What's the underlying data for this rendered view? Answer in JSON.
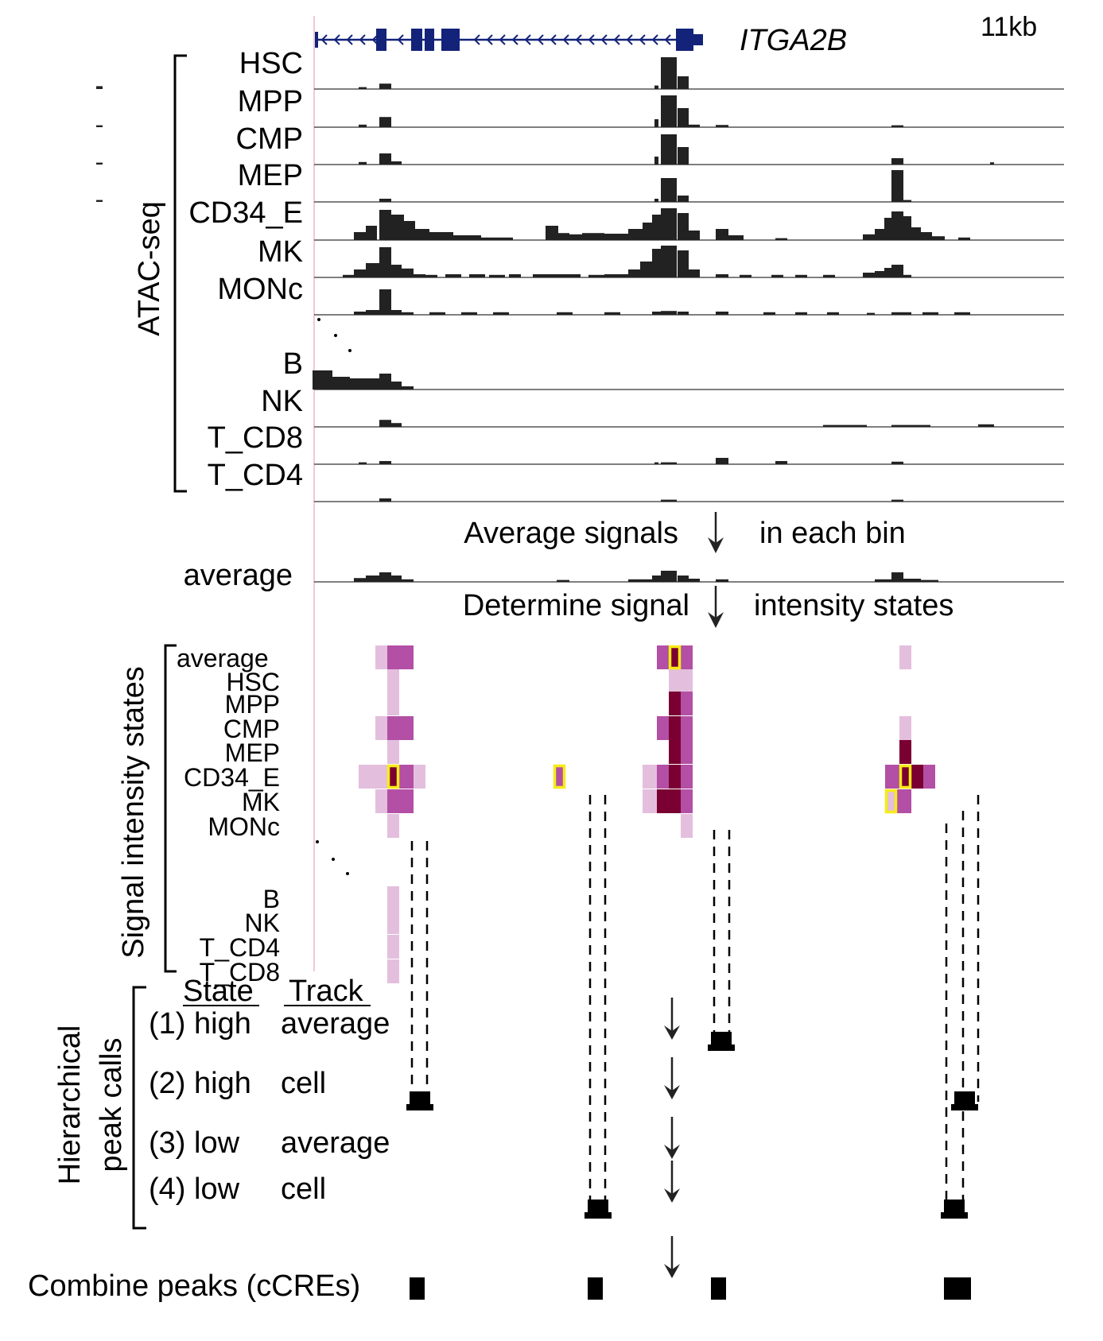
{
  "gene": {
    "name": "ITGA2B",
    "scale": "11kb"
  },
  "atac": {
    "title": "ATAC-seq",
    "tracks": [
      {
        "label": "HSC",
        "bars": [
          [
            121,
            129,
            0.09
          ],
          [
            451,
            461,
            0.06
          ],
          [
            477,
            492,
            0.17
          ],
          [
            823,
            828,
            0.11
          ],
          [
            831,
            851,
            1.0
          ],
          [
            852,
            866,
            0.4
          ]
        ]
      },
      {
        "label": "MPP",
        "bars": [
          [
            121,
            129,
            0.06
          ],
          [
            451,
            461,
            0.08
          ],
          [
            477,
            492,
            0.32
          ],
          [
            823,
            828,
            0.25
          ],
          [
            831,
            851,
            1.0
          ],
          [
            852,
            866,
            0.6
          ],
          [
            866,
            880,
            0.08
          ],
          [
            900,
            916,
            0.07
          ],
          [
            1121,
            1136,
            0.06
          ]
        ]
      },
      {
        "label": "CMP",
        "bars": [
          [
            121,
            129,
            0.06
          ],
          [
            451,
            461,
            0.08
          ],
          [
            477,
            492,
            0.35
          ],
          [
            492,
            505,
            0.1
          ],
          [
            823,
            828,
            0.25
          ],
          [
            831,
            851,
            0.95
          ],
          [
            852,
            866,
            0.55
          ],
          [
            1121,
            1136,
            0.2
          ],
          [
            1245,
            1250,
            0.07
          ]
        ]
      },
      {
        "label": "MEP",
        "bars": [
          [
            121,
            129,
            0.06
          ],
          [
            477,
            492,
            0.1
          ],
          [
            823,
            828,
            0.1
          ],
          [
            831,
            851,
            0.75
          ],
          [
            852,
            866,
            0.2
          ],
          [
            1121,
            1136,
            1.0
          ],
          [
            1136,
            1146,
            0.06
          ]
        ]
      },
      {
        "label": "CD34_E",
        "bars": [
          [
            445,
            460,
            0.25
          ],
          [
            460,
            474,
            0.45
          ],
          [
            477,
            492,
            0.95
          ],
          [
            492,
            508,
            0.8
          ],
          [
            508,
            522,
            0.6
          ],
          [
            522,
            540,
            0.35
          ],
          [
            540,
            570,
            0.25
          ],
          [
            570,
            605,
            0.15
          ],
          [
            605,
            645,
            0.08
          ],
          [
            686,
            702,
            0.45
          ],
          [
            702,
            716,
            0.22
          ],
          [
            716,
            732,
            0.18
          ],
          [
            732,
            760,
            0.22
          ],
          [
            760,
            790,
            0.2
          ],
          [
            790,
            808,
            0.35
          ],
          [
            808,
            820,
            0.55
          ],
          [
            820,
            831,
            0.8
          ],
          [
            831,
            851,
            1.0
          ],
          [
            852,
            866,
            0.85
          ],
          [
            866,
            880,
            0.3
          ],
          [
            900,
            916,
            0.35
          ],
          [
            916,
            935,
            0.15
          ],
          [
            975,
            990,
            0.06
          ],
          [
            1085,
            1100,
            0.18
          ],
          [
            1100,
            1112,
            0.35
          ],
          [
            1112,
            1121,
            0.7
          ],
          [
            1121,
            1136,
            0.9
          ],
          [
            1136,
            1146,
            0.75
          ],
          [
            1146,
            1158,
            0.4
          ],
          [
            1158,
            1172,
            0.25
          ],
          [
            1172,
            1188,
            0.12
          ],
          [
            1205,
            1220,
            0.08
          ]
        ]
      },
      {
        "label": "MK",
        "bars": [
          [
            431,
            445,
            0.08
          ],
          [
            445,
            460,
            0.25
          ],
          [
            460,
            477,
            0.45
          ],
          [
            477,
            492,
            0.95
          ],
          [
            492,
            505,
            0.4
          ],
          [
            505,
            520,
            0.28
          ],
          [
            520,
            535,
            0.1
          ],
          [
            535,
            550,
            0.08
          ],
          [
            560,
            580,
            0.1
          ],
          [
            590,
            610,
            0.1
          ],
          [
            615,
            635,
            0.08
          ],
          [
            640,
            655,
            0.1
          ],
          [
            670,
            700,
            0.1
          ],
          [
            700,
            730,
            0.1
          ],
          [
            740,
            760,
            0.08
          ],
          [
            760,
            790,
            0.1
          ],
          [
            790,
            805,
            0.25
          ],
          [
            805,
            820,
            0.5
          ],
          [
            820,
            831,
            0.9
          ],
          [
            831,
            851,
            1.0
          ],
          [
            852,
            866,
            0.85
          ],
          [
            866,
            880,
            0.25
          ],
          [
            900,
            916,
            0.1
          ],
          [
            930,
            945,
            0.08
          ],
          [
            970,
            985,
            0.08
          ],
          [
            1000,
            1015,
            0.08
          ],
          [
            1035,
            1050,
            0.08
          ],
          [
            1085,
            1100,
            0.15
          ],
          [
            1100,
            1112,
            0.2
          ],
          [
            1112,
            1121,
            0.3
          ],
          [
            1121,
            1136,
            0.4
          ],
          [
            1136,
            1146,
            0.08
          ]
        ]
      },
      {
        "label": "MONc",
        "bars": [
          [
            445,
            460,
            0.1
          ],
          [
            460,
            477,
            0.15
          ],
          [
            477,
            492,
            0.8
          ],
          [
            492,
            505,
            0.15
          ],
          [
            505,
            520,
            0.08
          ],
          [
            540,
            560,
            0.08
          ],
          [
            580,
            600,
            0.08
          ],
          [
            620,
            640,
            0.08
          ],
          [
            700,
            720,
            0.08
          ],
          [
            760,
            780,
            0.08
          ],
          [
            820,
            831,
            0.1
          ],
          [
            831,
            851,
            0.12
          ],
          [
            852,
            866,
            0.1
          ],
          [
            900,
            916,
            0.1
          ],
          [
            960,
            975,
            0.08
          ],
          [
            1000,
            1015,
            0.08
          ],
          [
            1040,
            1055,
            0.08
          ],
          [
            1090,
            1100,
            0.06
          ],
          [
            1121,
            1136,
            0.08
          ],
          [
            1136,
            1146,
            0.08
          ],
          [
            1160,
            1180,
            0.08
          ],
          [
            1200,
            1220,
            0.08
          ]
        ]
      },
      {
        "label": "B",
        "bars": [
          [
            393,
            418,
            0.6
          ],
          [
            418,
            440,
            0.4
          ],
          [
            440,
            460,
            0.35
          ],
          [
            460,
            477,
            0.35
          ],
          [
            477,
            492,
            0.5
          ],
          [
            492,
            505,
            0.25
          ],
          [
            505,
            520,
            0.1
          ]
        ]
      },
      {
        "label": "NK",
        "bars": [
          [
            477,
            492,
            0.22
          ],
          [
            492,
            505,
            0.12
          ],
          [
            1035,
            1060,
            0.06
          ],
          [
            1060,
            1090,
            0.06
          ],
          [
            1121,
            1140,
            0.06
          ],
          [
            1140,
            1170,
            0.06
          ],
          [
            1230,
            1250,
            0.08
          ]
        ]
      },
      {
        "label": "T_CD8",
        "bars": [
          [
            451,
            461,
            0.06
          ],
          [
            477,
            492,
            0.1
          ],
          [
            823,
            828,
            0.06
          ],
          [
            831,
            851,
            0.06
          ],
          [
            900,
            916,
            0.2
          ],
          [
            975,
            990,
            0.1
          ],
          [
            1121,
            1136,
            0.08
          ]
        ]
      },
      {
        "label": "T_CD4",
        "bars": [
          [
            477,
            492,
            0.1
          ],
          [
            831,
            851,
            0.06
          ],
          [
            1121,
            1136,
            0.06
          ]
        ]
      }
    ],
    "average_track": {
      "label": "average",
      "bars": [
        [
          445,
          460,
          0.12
        ],
        [
          460,
          477,
          0.2
        ],
        [
          477,
          492,
          0.3
        ],
        [
          492,
          505,
          0.2
        ],
        [
          505,
          520,
          0.08
        ],
        [
          700,
          716,
          0.06
        ],
        [
          790,
          820,
          0.08
        ],
        [
          820,
          831,
          0.2
        ],
        [
          831,
          851,
          0.35
        ],
        [
          852,
          866,
          0.2
        ],
        [
          866,
          880,
          0.1
        ],
        [
          900,
          916,
          0.08
        ],
        [
          1100,
          1121,
          0.08
        ],
        [
          1121,
          1136,
          0.3
        ],
        [
          1136,
          1158,
          0.1
        ],
        [
          1158,
          1180,
          0.06
        ]
      ]
    },
    "step1": {
      "left": "Average signals",
      "right": "in each bin"
    },
    "step2": {
      "left": "Determine signal",
      "right": "intensity states"
    }
  },
  "states": {
    "title": "Signal intensity states",
    "rows": [
      "average",
      "HSC",
      "MPP",
      "CMP",
      "MEP",
      "CD34_E",
      "MK",
      "MONc",
      "B",
      "NK",
      "T_CD4",
      "T_CD8"
    ],
    "cells": [
      [
        0,
        472,
        487,
        "l"
      ],
      [
        0,
        487,
        520,
        "m"
      ],
      [
        0,
        826,
        841,
        "m"
      ],
      [
        0,
        841,
        856,
        "d"
      ],
      [
        0,
        856,
        871,
        "m"
      ],
      [
        0,
        1131,
        1146,
        "l"
      ],
      [
        1,
        487,
        502,
        "l"
      ],
      [
        1,
        841,
        871,
        "l"
      ],
      [
        2,
        487,
        502,
        "l"
      ],
      [
        2,
        841,
        856,
        "d"
      ],
      [
        2,
        856,
        871,
        "m"
      ],
      [
        3,
        472,
        487,
        "l"
      ],
      [
        3,
        487,
        520,
        "m"
      ],
      [
        3,
        826,
        841,
        "m"
      ],
      [
        3,
        841,
        856,
        "d"
      ],
      [
        3,
        856,
        871,
        "m"
      ],
      [
        3,
        1131,
        1146,
        "l"
      ],
      [
        4,
        487,
        502,
        "l"
      ],
      [
        4,
        841,
        856,
        "d"
      ],
      [
        4,
        856,
        871,
        "m"
      ],
      [
        4,
        1131,
        1146,
        "d"
      ],
      [
        5,
        451,
        487,
        "l"
      ],
      [
        5,
        487,
        502,
        "d"
      ],
      [
        5,
        502,
        520,
        "m"
      ],
      [
        5,
        520,
        535,
        "l"
      ],
      [
        5,
        696,
        711,
        "m"
      ],
      [
        5,
        808,
        826,
        "l"
      ],
      [
        5,
        826,
        841,
        "m"
      ],
      [
        5,
        841,
        856,
        "d"
      ],
      [
        5,
        856,
        871,
        "m"
      ],
      [
        5,
        1113,
        1131,
        "m"
      ],
      [
        5,
        1131,
        1146,
        "d"
      ],
      [
        5,
        1146,
        1161,
        "d"
      ],
      [
        5,
        1161,
        1176,
        "m"
      ],
      [
        6,
        472,
        487,
        "l"
      ],
      [
        6,
        487,
        520,
        "m"
      ],
      [
        6,
        808,
        826,
        "l"
      ],
      [
        6,
        826,
        856,
        "d"
      ],
      [
        6,
        856,
        871,
        "m"
      ],
      [
        6,
        1113,
        1128,
        "l"
      ],
      [
        6,
        1128,
        1146,
        "m"
      ],
      [
        7,
        487,
        502,
        "l"
      ],
      [
        7,
        856,
        871,
        "l"
      ],
      [
        8,
        487,
        502,
        "l"
      ],
      [
        9,
        487,
        502,
        "l"
      ],
      [
        10,
        487,
        502,
        "l"
      ],
      [
        11,
        487,
        502,
        "l"
      ]
    ],
    "highlights": [
      [
        0,
        841,
        856
      ],
      [
        5,
        487,
        502
      ],
      [
        5,
        696,
        711
      ],
      [
        5,
        1131,
        1146
      ],
      [
        6,
        1113,
        1128
      ]
    ]
  },
  "peaks": {
    "title_line1": "Hierarchical",
    "title_line2": "peak calls",
    "header": {
      "state": "State",
      "track": "Track"
    },
    "rows": [
      {
        "state": "(1) high",
        "track": "average"
      },
      {
        "state": "(2) high",
        "track": "cell"
      },
      {
        "state": "(3) low",
        "track": "average"
      },
      {
        "state": "(4) low",
        "track": "cell"
      }
    ],
    "combine_label": "Combine peaks (cCREs)"
  },
  "colors": {
    "dark": "#7a0032",
    "medium": "#b34fa5",
    "light": "#e3bfdd",
    "highlight": "#f7ec17",
    "gene": "#13237a",
    "signal": "#222222"
  }
}
